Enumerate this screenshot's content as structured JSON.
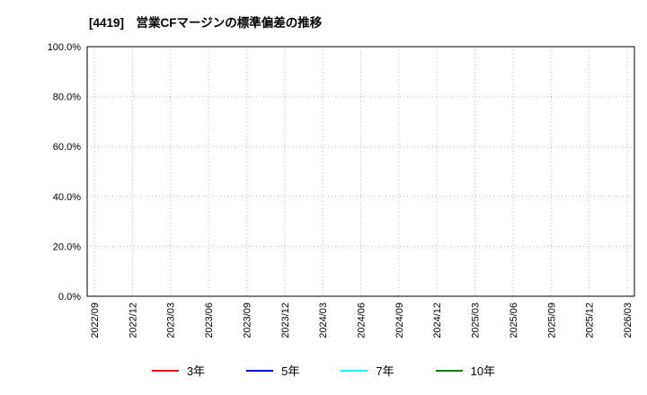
{
  "chart_data": {
    "type": "line",
    "title": "[4419]　営業CFマージンの標準偏差の推移",
    "x_labels": [
      "2022/09",
      "2022/12",
      "2023/03",
      "2023/06",
      "2023/09",
      "2023/12",
      "2024/03",
      "2024/06",
      "2024/09",
      "2024/12",
      "2025/03",
      "2025/06",
      "2025/09",
      "2025/12",
      "2026/03"
    ],
    "y_ticks": [
      0,
      20,
      40,
      60,
      80,
      100
    ],
    "y_tick_labels": [
      "0.0%",
      "20.0%",
      "40.0%",
      "60.0%",
      "80.0%",
      "100.0%"
    ],
    "ylim": [
      0,
      100
    ],
    "grid": true,
    "grid_style": "dotted",
    "legend_position": "bottom",
    "series": [
      {
        "name": "3年",
        "color": "#ff0000",
        "values": []
      },
      {
        "name": "5年",
        "color": "#0000ff",
        "values": []
      },
      {
        "name": "7年",
        "color": "#00ffff",
        "values": []
      },
      {
        "name": "10年",
        "color": "#008000",
        "values": []
      }
    ]
  }
}
